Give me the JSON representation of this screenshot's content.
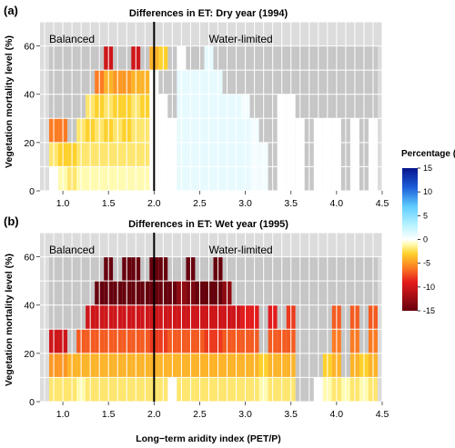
{
  "colors": {
    "panel_bg": "#dcdcdc",
    "nodata": "#c6c6c6",
    "grid": "#ffffff",
    "divider": "#000000"
  },
  "colorbar": {
    "title": "Percentage (%)",
    "min": -15,
    "max": 15,
    "ticks": [
      15,
      10,
      5,
      0,
      -5,
      -10,
      -15
    ],
    "stops": [
      {
        "v": -15,
        "c": "#67000d"
      },
      {
        "v": -12,
        "c": "#a50f15"
      },
      {
        "v": -9,
        "c": "#e31a1c"
      },
      {
        "v": -6,
        "c": "#fc7b22"
      },
      {
        "v": -3,
        "c": "#fed12c"
      },
      {
        "v": -1,
        "c": "#fffbb0"
      },
      {
        "v": 0,
        "c": "#ffffff"
      },
      {
        "v": 3,
        "c": "#b7f3ff"
      },
      {
        "v": 7,
        "c": "#5ecbff"
      },
      {
        "v": 11,
        "c": "#1a5cd8"
      },
      {
        "v": 15,
        "c": "#08148c"
      }
    ]
  },
  "chart_data": [
    {
      "type": "heatmap",
      "panel_label": "(a)",
      "title": "Differences in ET: Dry year (1994)",
      "xlabel": "",
      "ylabel": "Vegetation mortality level (%)",
      "xlim": [
        0.75,
        4.5
      ],
      "ylim": [
        0,
        70
      ],
      "xticks": [
        1.0,
        1.5,
        2.0,
        2.5,
        3.0,
        3.5,
        4.0,
        4.5
      ],
      "xtick_labels": [
        "1.0",
        "1.5",
        "2.0",
        "2.5",
        "3.0",
        "3.5",
        "4.0",
        "4.5"
      ],
      "yticks": [
        0,
        20,
        40,
        60
      ],
      "ytick_labels": [
        "0",
        "20",
        "40",
        "60"
      ],
      "region_labels": {
        "left": "Balanced",
        "right": "Water-limited"
      },
      "divider_x": 2.0,
      "cell_width": 0.1,
      "cell_height": 10,
      "x_centers": [
        0.9,
        1.0,
        1.1,
        1.2,
        1.3,
        1.4,
        1.5,
        1.6,
        1.7,
        1.8,
        1.9,
        2.0,
        2.1,
        2.2,
        2.3,
        2.4,
        2.5,
        2.6,
        2.7,
        2.8,
        2.9,
        3.0,
        3.1,
        3.2,
        3.3,
        3.4,
        3.5,
        3.6,
        3.7,
        3.8,
        3.9,
        4.0,
        4.1,
        4.2,
        4.3,
        4.4
      ],
      "y_centers": [
        5,
        15,
        25,
        35,
        45,
        55
      ],
      "values": [
        [
          0,
          -1,
          -2,
          -1,
          -1,
          -1,
          -1,
          -1,
          -1,
          -1,
          -1,
          0,
          0,
          0,
          1,
          1,
          1,
          1,
          1,
          1,
          1,
          1,
          0.5,
          0.5,
          null,
          0,
          0,
          0,
          null,
          0,
          0,
          0,
          null,
          0,
          null,
          0
        ],
        [
          -2,
          -3,
          -3,
          -2,
          -2,
          -2,
          -2,
          -2,
          -2,
          -2,
          -2,
          0,
          0,
          0,
          1,
          1,
          1,
          1,
          1,
          1,
          1,
          1,
          0.5,
          0.5,
          null,
          0,
          0,
          0,
          null,
          0,
          0,
          0,
          null,
          0,
          null,
          0
        ],
        [
          -6,
          -6,
          null,
          -2,
          -3,
          -2,
          -3,
          -2,
          -3,
          -2,
          -2,
          0,
          0,
          0,
          1,
          1,
          1,
          1,
          1,
          1,
          1,
          1,
          0.5,
          null,
          null,
          0,
          0,
          0,
          null,
          0,
          0,
          0,
          null,
          0,
          null,
          0
        ],
        [
          null,
          null,
          null,
          null,
          -2,
          -3,
          -2,
          -3,
          -3,
          -2,
          -3,
          0,
          0,
          null,
          1,
          1,
          1,
          1,
          1,
          1,
          1,
          0.5,
          null,
          null,
          null,
          0,
          0,
          null,
          null,
          null,
          null,
          null,
          null,
          null,
          null,
          null
        ],
        [
          null,
          null,
          null,
          null,
          null,
          -6,
          -4,
          -5,
          -5,
          -4,
          -4,
          0,
          null,
          null,
          1,
          1,
          1,
          1,
          1,
          null,
          null,
          null,
          null,
          null,
          null,
          null,
          null,
          null,
          null,
          null,
          null,
          null,
          null,
          null,
          null,
          null
        ],
        [
          null,
          null,
          null,
          null,
          null,
          null,
          -10,
          null,
          null,
          -10,
          null,
          -4,
          -3,
          null,
          0,
          null,
          null,
          1,
          null,
          null,
          null,
          null,
          null,
          null,
          null,
          null,
          null,
          null,
          null,
          null,
          null,
          null,
          null,
          null,
          null,
          null
        ]
      ]
    },
    {
      "type": "heatmap",
      "panel_label": "(b)",
      "title": "Differences in ET: Wet year (1995)",
      "xlabel": "Long−term aridity index (PET/P)",
      "ylabel": "Vegetation mortality level (%)",
      "xlim": [
        0.75,
        4.5
      ],
      "ylim": [
        0,
        70
      ],
      "xticks": [
        1.0,
        1.5,
        2.0,
        2.5,
        3.0,
        3.5,
        4.0,
        4.5
      ],
      "xtick_labels": [
        "1.0",
        "1.5",
        "2.0",
        "2.5",
        "3.0",
        "3.5",
        "4.0",
        "4.5"
      ],
      "yticks": [
        0,
        20,
        40,
        60
      ],
      "ytick_labels": [
        "0",
        "20",
        "40",
        "60"
      ],
      "region_labels": {
        "left": "Balanced",
        "right": "Water-limited"
      },
      "divider_x": 2.0,
      "cell_width": 0.1,
      "cell_height": 10,
      "x_centers": [
        0.9,
        1.0,
        1.1,
        1.2,
        1.3,
        1.4,
        1.5,
        1.6,
        1.7,
        1.8,
        1.9,
        2.0,
        2.1,
        2.2,
        2.3,
        2.4,
        2.5,
        2.6,
        2.7,
        2.8,
        2.9,
        3.0,
        3.1,
        3.2,
        3.3,
        3.4,
        3.5,
        3.6,
        3.7,
        3.8,
        3.9,
        4.0,
        4.1,
        4.2,
        4.3,
        4.4
      ],
      "y_centers": [
        5,
        15,
        25,
        35,
        45,
        55
      ],
      "values": [
        [
          -2,
          -2,
          -2,
          -1,
          -2,
          -2,
          -2,
          -2,
          -2,
          -2,
          -2,
          -2,
          -2,
          0,
          -2,
          -2,
          -2,
          -2,
          -2,
          -2,
          -2,
          -2,
          -2,
          -1,
          -2,
          -2,
          -2,
          null,
          null,
          0,
          -1,
          -2,
          -1,
          -2,
          -1,
          -2
        ],
        [
          -5,
          -5,
          -4,
          -4,
          -4,
          -4,
          -4,
          -4,
          -4,
          -4,
          -4,
          -4,
          -4,
          -4,
          -4,
          -4,
          -4,
          -4,
          -4,
          -4,
          -4,
          -4,
          -4,
          -3,
          -4,
          -4,
          -4,
          null,
          null,
          null,
          -3,
          -4,
          null,
          -4,
          -3,
          -4
        ],
        [
          -10,
          -10,
          null,
          -7,
          -7,
          -7,
          -7,
          -7,
          -7,
          -7,
          -7,
          -8,
          -8,
          -7,
          -7,
          -7,
          -7,
          -8,
          -8,
          -7,
          -7,
          -7,
          -7,
          null,
          -7,
          -7,
          -7,
          null,
          null,
          null,
          null,
          -6,
          null,
          -6,
          null,
          -6
        ],
        [
          null,
          null,
          null,
          null,
          -10,
          -10,
          -10,
          -10,
          -10,
          -10,
          -10,
          -10,
          -10,
          -10,
          -10,
          -10,
          -10,
          -10,
          -10,
          -10,
          -10,
          -9,
          -9,
          null,
          -9,
          null,
          -8,
          null,
          null,
          null,
          null,
          -7,
          null,
          -7,
          null,
          -7
        ],
        [
          null,
          null,
          null,
          null,
          null,
          -15,
          -15,
          -15,
          -15,
          -15,
          -15,
          -15,
          -15,
          -15,
          -13,
          -14,
          -15,
          -15,
          -15,
          -13,
          null,
          null,
          null,
          null,
          null,
          null,
          null,
          null,
          null,
          null,
          null,
          null,
          null,
          null,
          null,
          null
        ],
        [
          null,
          null,
          null,
          null,
          null,
          null,
          -15,
          null,
          -15,
          -15,
          null,
          -15,
          -15,
          null,
          null,
          -15,
          null,
          null,
          -15,
          null,
          null,
          null,
          null,
          null,
          null,
          null,
          null,
          null,
          null,
          null,
          null,
          null,
          null,
          null,
          null,
          null
        ]
      ]
    }
  ]
}
